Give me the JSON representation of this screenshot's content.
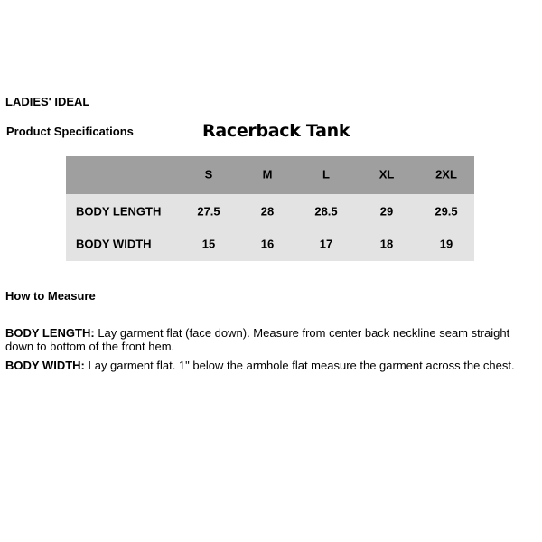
{
  "brand": "LADIES' IDEAL",
  "section": "Product Specifications",
  "product_title": "Racerback Tank",
  "table": {
    "columns": [
      "S",
      "M",
      "L",
      "XL",
      "2XL"
    ],
    "rows": [
      {
        "label": "BODY LENGTH",
        "values": [
          "27.5",
          "28",
          "28.5",
          "29",
          "29.5"
        ]
      },
      {
        "label": "BODY WIDTH",
        "values": [
          "15",
          "16",
          "17",
          "18",
          "19"
        ]
      }
    ],
    "colors": {
      "header_bg": "#a09fa0",
      "body_bg": "#e3e3e3"
    }
  },
  "how_to": {
    "heading": "How to Measure",
    "items": [
      {
        "term": "BODY LENGTH:",
        "text": " Lay garment flat (face down). Measure from center back neckline seam straight down to bottom of the front hem."
      },
      {
        "term": "BODY WIDTH:",
        "text": " Lay garment flat. 1\" below the armhole flat measure the garment across the chest."
      }
    ]
  }
}
